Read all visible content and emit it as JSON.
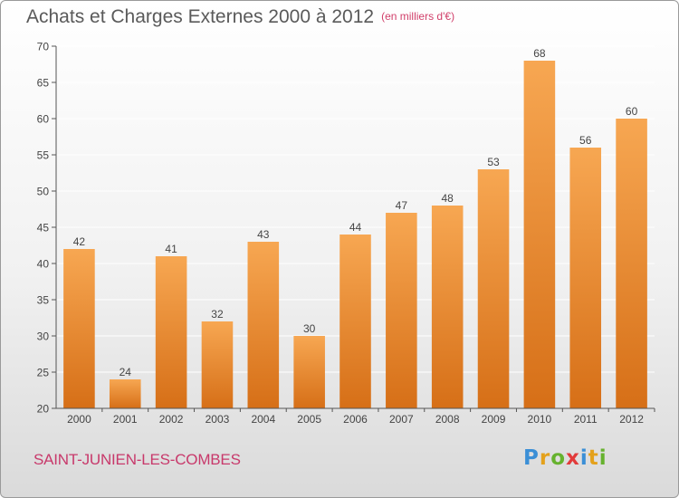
{
  "header": {
    "title": "Achats et Charges Externes 2000 à 2012",
    "subtitle": "(en milliers d'€)"
  },
  "footer": {
    "commune": "SAINT-JUNIEN-LES-COMBES",
    "logo": "Proxiti"
  },
  "colors": {
    "bar_top": "#f7a752",
    "bar_bottom": "#d66f17",
    "axis": "#555555",
    "grid": "#ffffff"
  },
  "chart_data": {
    "type": "bar",
    "title": "Achats et Charges Externes 2000 à 2012",
    "subtitle": "(en milliers d'€)",
    "categories": [
      "2000",
      "2001",
      "2002",
      "2003",
      "2004",
      "2005",
      "2006",
      "2007",
      "2008",
      "2009",
      "2010",
      "2011",
      "2012"
    ],
    "values": [
      42,
      24,
      41,
      32,
      43,
      30,
      44,
      47,
      48,
      53,
      68,
      56,
      60
    ],
    "ylim": [
      20,
      70
    ],
    "yticks": [
      20,
      25,
      30,
      35,
      40,
      45,
      50,
      55,
      60,
      65,
      70
    ],
    "grid": true,
    "data_labels": true
  }
}
